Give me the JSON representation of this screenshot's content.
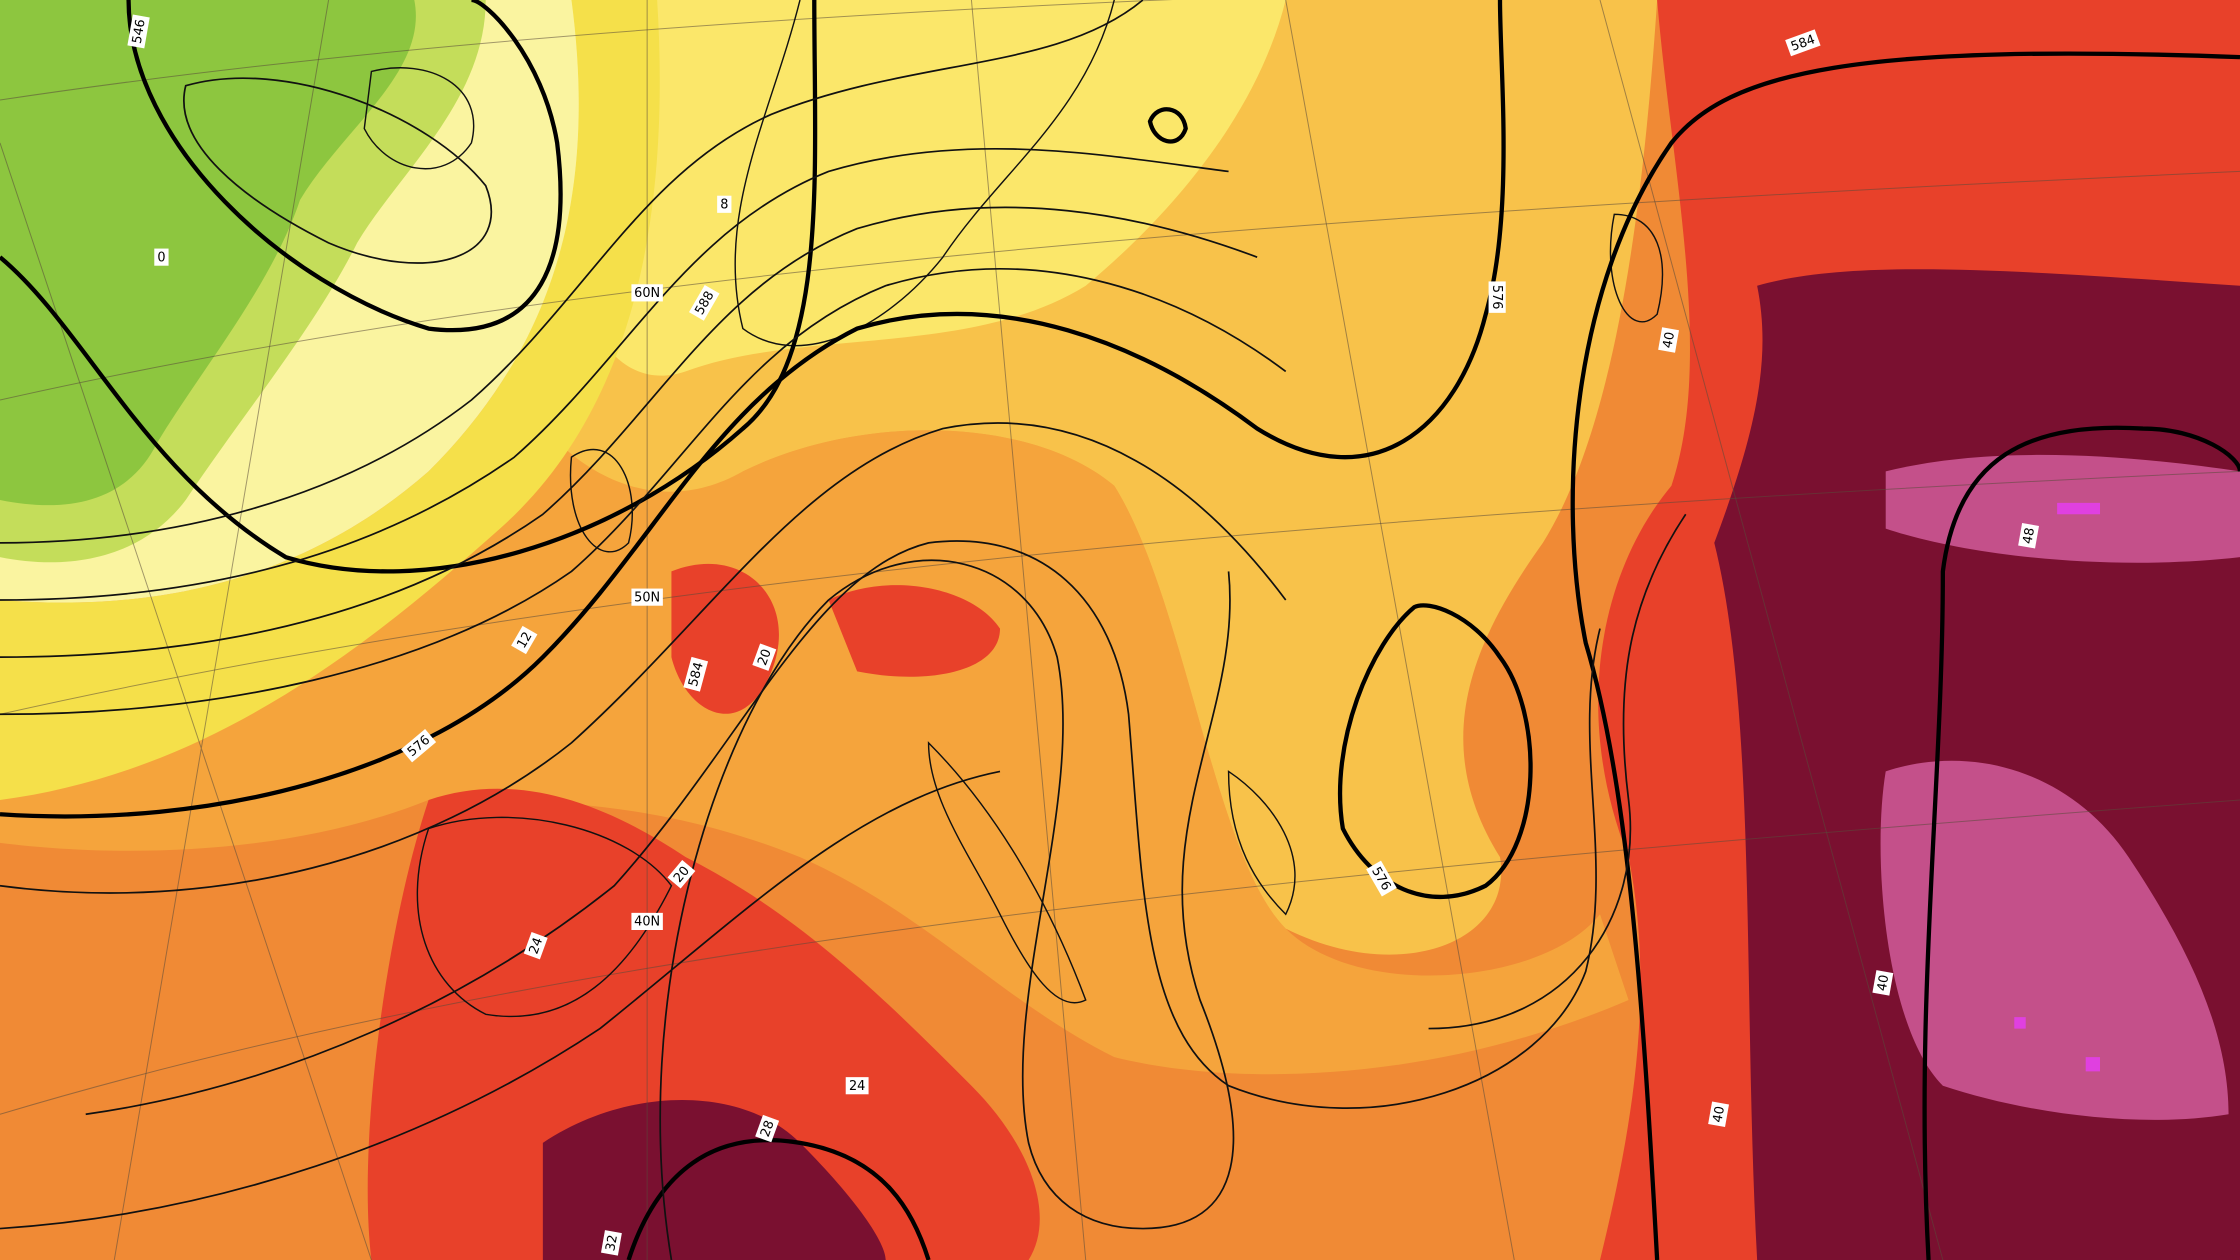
{
  "map": {
    "labels": [
      "584",
      "576",
      "588",
      "584",
      "576",
      "576",
      "546",
      "60N",
      "50N",
      "40N",
      "0",
      "8",
      "12",
      "20",
      "20",
      "24",
      "24",
      "28",
      "32",
      "40",
      "40",
      "48",
      "40"
    ]
  }
}
